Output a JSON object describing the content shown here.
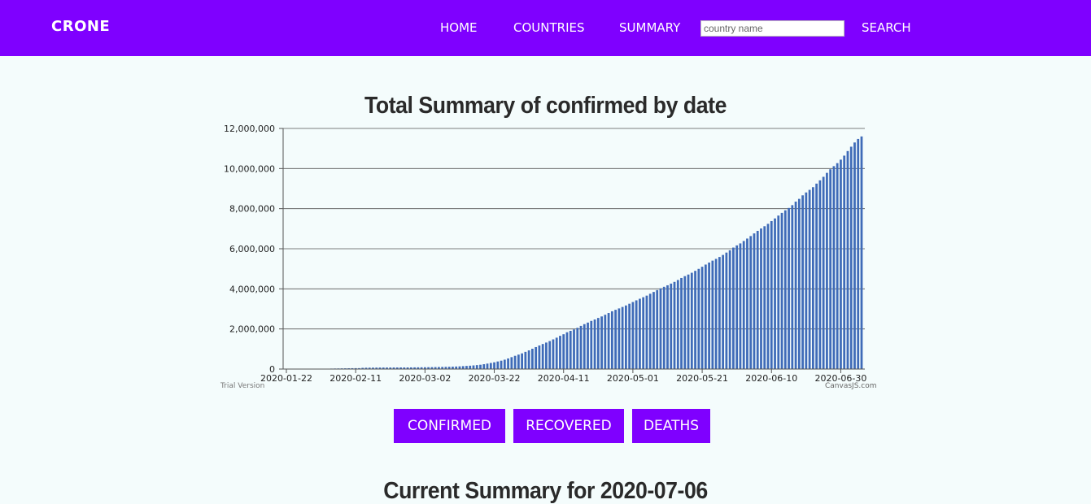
{
  "nav": {
    "brand": "CRONE",
    "links": [
      "HOME",
      "COUNTRIES",
      "SUMMARY"
    ],
    "search_placeholder": "country name",
    "search_button": "SEARCH",
    "color": "#7f00ff"
  },
  "chart_data": {
    "type": "bar",
    "title": "Total Summary of confirmed by date",
    "xlabel": "",
    "ylabel": "",
    "ylim": [
      0,
      12000000
    ],
    "y_ticks": [
      "0",
      "2,000,000",
      "4,000,000",
      "6,000,000",
      "8,000,000",
      "10,000,000",
      "12,000,000"
    ],
    "x_ticks": [
      "2020-01-22",
      "2020-02-11",
      "2020-03-02",
      "2020-03-22",
      "2020-04-11",
      "2020-05-01",
      "2020-05-21",
      "2020-06-10",
      "2020-06-30"
    ],
    "x_start": "2020-01-22",
    "x_end": "2020-07-06",
    "grid": true,
    "bar_color": "#3f6bb8",
    "dates": [
      "2020-01-22",
      "2020-01-23",
      "2020-01-24",
      "2020-01-25",
      "2020-01-26",
      "2020-01-27",
      "2020-01-28",
      "2020-01-29",
      "2020-01-30",
      "2020-01-31",
      "2020-02-01",
      "2020-02-02",
      "2020-02-03",
      "2020-02-04",
      "2020-02-05",
      "2020-02-06",
      "2020-02-07",
      "2020-02-08",
      "2020-02-09",
      "2020-02-10",
      "2020-02-11",
      "2020-02-12",
      "2020-02-13",
      "2020-02-14",
      "2020-02-15",
      "2020-02-16",
      "2020-02-17",
      "2020-02-18",
      "2020-02-19",
      "2020-02-20",
      "2020-02-21",
      "2020-02-22",
      "2020-02-23",
      "2020-02-24",
      "2020-02-25",
      "2020-02-26",
      "2020-02-27",
      "2020-02-28",
      "2020-02-29",
      "2020-03-01",
      "2020-03-02",
      "2020-03-03",
      "2020-03-04",
      "2020-03-05",
      "2020-03-06",
      "2020-03-07",
      "2020-03-08",
      "2020-03-09",
      "2020-03-10",
      "2020-03-11",
      "2020-03-12",
      "2020-03-13",
      "2020-03-14",
      "2020-03-15",
      "2020-03-16",
      "2020-03-17",
      "2020-03-18",
      "2020-03-19",
      "2020-03-20",
      "2020-03-21",
      "2020-03-22",
      "2020-03-23",
      "2020-03-24",
      "2020-03-25",
      "2020-03-26",
      "2020-03-27",
      "2020-03-28",
      "2020-03-29",
      "2020-03-30",
      "2020-03-31",
      "2020-04-01",
      "2020-04-02",
      "2020-04-03",
      "2020-04-04",
      "2020-04-05",
      "2020-04-06",
      "2020-04-07",
      "2020-04-08",
      "2020-04-09",
      "2020-04-10",
      "2020-04-11",
      "2020-04-12",
      "2020-04-13",
      "2020-04-14",
      "2020-04-15",
      "2020-04-16",
      "2020-04-17",
      "2020-04-18",
      "2020-04-19",
      "2020-04-20",
      "2020-04-21",
      "2020-04-22",
      "2020-04-23",
      "2020-04-24",
      "2020-04-25",
      "2020-04-26",
      "2020-04-27",
      "2020-04-28",
      "2020-04-29",
      "2020-04-30",
      "2020-05-01",
      "2020-05-02",
      "2020-05-03",
      "2020-05-04",
      "2020-05-05",
      "2020-05-06",
      "2020-05-07",
      "2020-05-08",
      "2020-05-09",
      "2020-05-10",
      "2020-05-11",
      "2020-05-12",
      "2020-05-13",
      "2020-05-14",
      "2020-05-15",
      "2020-05-16",
      "2020-05-17",
      "2020-05-18",
      "2020-05-19",
      "2020-05-20",
      "2020-05-21",
      "2020-05-22",
      "2020-05-23",
      "2020-05-24",
      "2020-05-25",
      "2020-05-26",
      "2020-05-27",
      "2020-05-28",
      "2020-05-29",
      "2020-05-30",
      "2020-05-31",
      "2020-06-01",
      "2020-06-02",
      "2020-06-03",
      "2020-06-04",
      "2020-06-05",
      "2020-06-06",
      "2020-06-07",
      "2020-06-08",
      "2020-06-09",
      "2020-06-10",
      "2020-06-11",
      "2020-06-12",
      "2020-06-13",
      "2020-06-14",
      "2020-06-15",
      "2020-06-16",
      "2020-06-17",
      "2020-06-18",
      "2020-06-19",
      "2020-06-20",
      "2020-06-21",
      "2020-06-22",
      "2020-06-23",
      "2020-06-24",
      "2020-06-25",
      "2020-06-26",
      "2020-06-27",
      "2020-06-28",
      "2020-06-29",
      "2020-06-30",
      "2020-07-01",
      "2020-07-02",
      "2020-07-03",
      "2020-07-04",
      "2020-07-05",
      "2020-07-06"
    ],
    "values": [
      555,
      654,
      941,
      1434,
      2118,
      2927,
      5578,
      6166,
      8234,
      9927,
      12038,
      16787,
      19881,
      23892,
      27635,
      30794,
      34391,
      37120,
      40150,
      42762,
      44802,
      45221,
      60368,
      66885,
      69030,
      71224,
      73258,
      75136,
      75639,
      76197,
      76819,
      78572,
      78958,
      79561,
      80406,
      81388,
      82746,
      84112,
      86604,
      88585,
      90443,
      93016,
      95314,
      98425,
      102050,
      106099,
      109991,
      114381,
      118948,
      126214,
      134509,
      145205,
      156101,
      167454,
      181574,
      197102,
      214821,
      242570,
      272208,
      304507,
      336953,
      378235,
      418045,
      467653,
      529591,
      593291,
      660706,
      720117,
      782365,
      857487,
      932605,
      1013157,
      1095917,
      1176060,
      1249754,
      1321481,
      1396476,
      1479804,
      1565278,
      1657526,
      1735650,
      1834721,
      1904838,
      1976191,
      2056054,
      2152437,
      2240190,
      2317759,
      2401378,
      2472259,
      2549123,
      2624074,
      2708885,
      2795731,
      2881140,
      2955033,
      3023722,
      3097229,
      3172287,
      3256846,
      3343777,
      3427343,
      3506729,
      3583055,
      3662691,
      3755341,
      3845718,
      3938064,
      4024009,
      4101699,
      4177502,
      4261747,
      4347018,
      4442163,
      4542347,
      4634068,
      4713620,
      4801943,
      4897492,
      4996472,
      5102424,
      5210817,
      5311540,
      5407613,
      5495061,
      5589626,
      5691790,
      5808946,
      5924275,
      6059017,
      6166946,
      6265852,
      6386832,
      6508635,
      6632985,
      6764702,
      6891827,
      7010349,
      7122966,
      7243128,
      7380184,
      7512014,
      7654825,
      7788484,
      7917624,
      8034504,
      8173940,
      8349950,
      8488286,
      8663760,
      8807467,
      8937286,
      9071390,
      9248133,
      9411163,
      9587707,
      9785102,
      9965051,
      10119225,
      10268883,
      10443227,
      10644025,
      10872003,
      11089458,
      11299883,
      11475938,
      11601015
    ]
  },
  "credits": {
    "left": "Trial Version",
    "right": "CanvasJS.com"
  },
  "buttons": {
    "confirmed": "CONFIRMED",
    "recovered": "RECOVERED",
    "deaths": "DEATHS"
  },
  "summary": {
    "title": "Current Summary for 2020-07-06"
  }
}
